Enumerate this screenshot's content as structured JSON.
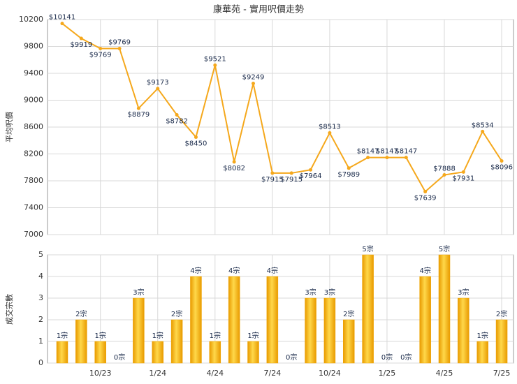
{
  "chart_data": [
    {
      "type": "line",
      "title": "康華苑 - 實用呎價走勢",
      "y_label": "平均呎價",
      "values": [
        10141,
        9919,
        9769,
        9769,
        8879,
        9173,
        8782,
        8450,
        9521,
        8082,
        9249,
        7915,
        7915,
        7964,
        8513,
        7989,
        8147,
        8147,
        8147,
        7639,
        7888,
        7931,
        8534,
        8096
      ],
      "value_labels": [
        "$10141",
        "$9919",
        "$9769",
        "$9769",
        "$8879",
        "$9173",
        "$8782",
        "$8450",
        "$9521",
        "$8082",
        "$9249",
        "$7915",
        "$7915",
        "$7964",
        "$8513",
        "$7989",
        "$8147",
        "$8147",
        "$8147",
        "$7639",
        "$7888",
        "$7931",
        "$8534",
        "$8096"
      ],
      "color": "#f5a81c",
      "ylim": [
        7000,
        10200
      ],
      "yticks": [
        7000,
        7400,
        7800,
        8200,
        8600,
        9000,
        9400,
        9800,
        10200
      ],
      "grid": true
    },
    {
      "type": "bar",
      "y_label": "成交宗數",
      "categories": [
        null,
        null,
        "10/23",
        null,
        null,
        "1/24",
        null,
        null,
        "4/24",
        null,
        null,
        "7/24",
        null,
        null,
        "10/24",
        null,
        null,
        "1/25",
        null,
        null,
        "4/25",
        null,
        null,
        "7/25"
      ],
      "values": [
        1,
        2,
        1,
        0,
        3,
        1,
        2,
        4,
        1,
        4,
        1,
        4,
        0,
        3,
        3,
        2,
        5,
        0,
        0,
        4,
        5,
        3,
        1,
        2
      ],
      "value_labels": [
        "1宗",
        "2宗",
        "1宗",
        "0宗",
        "3宗",
        "1宗",
        "2宗",
        "4宗",
        "1宗",
        "4宗",
        "1宗",
        "4宗",
        "0宗",
        "3宗",
        "3宗",
        "2宗",
        "5宗",
        "0宗",
        "0宗",
        "4宗",
        "5宗",
        "3宗",
        "1宗",
        "2宗"
      ],
      "color": "#f0a500",
      "ylim": [
        0,
        5
      ],
      "yticks": [
        0,
        1,
        2,
        3,
        4,
        5
      ],
      "grid": true
    }
  ]
}
